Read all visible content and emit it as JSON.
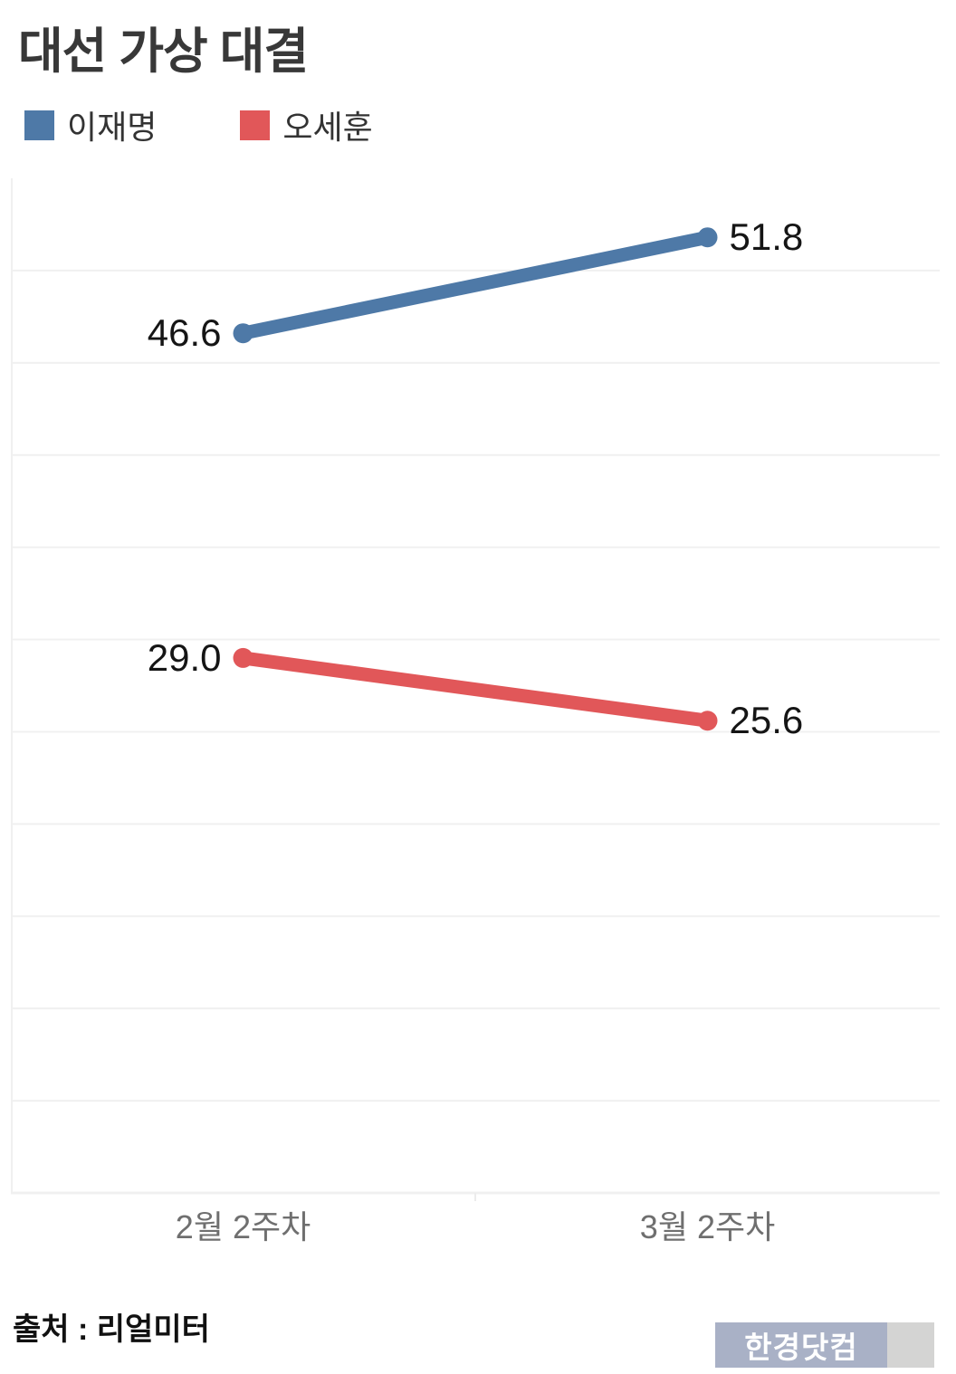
{
  "title": "대선 가상 대결",
  "legend": [
    {
      "label": "이재명",
      "color": "#4e79a7"
    },
    {
      "label": "오세훈",
      "color": "#e15759"
    }
  ],
  "chart_data": {
    "type": "line",
    "title": "대선 가상 대결",
    "categories": [
      "2월 2주차",
      "3월 2주차"
    ],
    "series": [
      {
        "name": "이재명",
        "color": "#4e79a7",
        "values": [
          46.6,
          51.8
        ]
      },
      {
        "name": "오세훈",
        "color": "#e15759",
        "values": [
          29.0,
          25.6
        ]
      }
    ],
    "xlabel": "",
    "ylabel": "",
    "ylim": [
      0,
      55
    ],
    "grid_step": 5,
    "grid": true,
    "legend_position": "top-left",
    "data_labels_shown": true,
    "colors": {
      "gridline": "#f0f0f0",
      "axis_line": "#f0f0f0",
      "tick": "#ececec",
      "data_label_text": "#151515",
      "x_label_text": "#6f6f6f"
    }
  },
  "footer": {
    "source": "출처 : 리얼미터",
    "logo_text": "한경닷컴",
    "logo_bg": "#a9b1c6",
    "logo_square_bg": "#d4d4d3"
  }
}
